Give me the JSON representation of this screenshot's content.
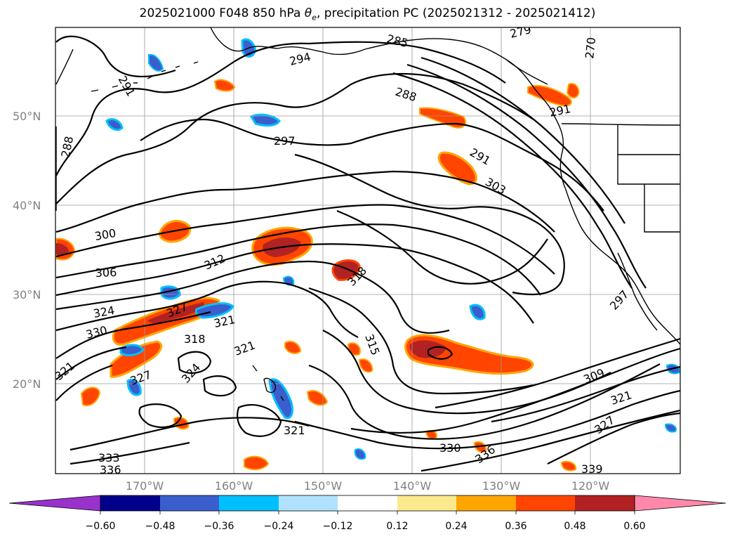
{
  "title": {
    "prefix": "2025021000 F048 850 hPa ",
    "theta": "θ",
    "theta_sub": "e",
    "suffix": ", precipitation PC (2025021312 - 2025021412)"
  },
  "map": {
    "lat_labels": [
      "50°N",
      "40°N",
      "30°N",
      "20°N"
    ],
    "lon_labels": [
      "170°W",
      "160°W",
      "150°W",
      "140°W",
      "130°W",
      "120°W"
    ],
    "contour_labels": [
      "291",
      "288",
      "294",
      "285",
      "279",
      "270",
      "288",
      "297",
      "291",
      "303",
      "300",
      "306",
      "312",
      "318",
      "324",
      "330",
      "327",
      "321",
      "318",
      "321",
      "324",
      "327",
      "321",
      "315",
      "309",
      "321",
      "327",
      "330",
      "333",
      "336",
      "339",
      "336",
      "321",
      "297",
      "291"
    ]
  },
  "colorbar": {
    "colors": [
      "#9932cc",
      "#00008b",
      "#3a5fcd",
      "#00bfff",
      "#b0e2ff",
      "#ffffff",
      "#fce98e",
      "#ffa500",
      "#ff4500",
      "#b22222",
      "#ff88aa"
    ],
    "tick_labels": [
      "−0.60",
      "−0.48",
      "−0.36",
      "−0.24",
      "−0.12",
      "0.12",
      "0.24",
      "0.36",
      "0.48",
      "0.60"
    ]
  }
}
